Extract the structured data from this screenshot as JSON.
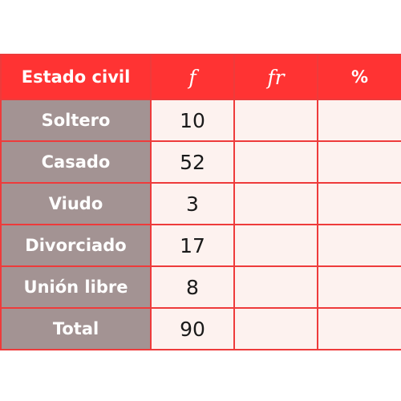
{
  "chart_data": {
    "type": "table",
    "columns": [
      "Estado civil",
      "f",
      "fr",
      "%"
    ],
    "rows": [
      {
        "category": "Soltero",
        "f": "10",
        "fr": "",
        "pct": ""
      },
      {
        "category": "Casado",
        "f": "52",
        "fr": "",
        "pct": ""
      },
      {
        "category": "Viudo",
        "f": "3",
        "fr": "",
        "pct": ""
      },
      {
        "category": "Divorciado",
        "f": "17",
        "fr": "",
        "pct": ""
      },
      {
        "category": "Unión libre",
        "f": "8",
        "fr": "",
        "pct": ""
      },
      {
        "category": "Total",
        "f": "90",
        "fr": "",
        "pct": ""
      }
    ]
  },
  "colors": {
    "header_bg": "#ff3333",
    "label_bg": "#a39393",
    "cell_bg": "#fdf2ef",
    "border": "#ee3b3b"
  }
}
